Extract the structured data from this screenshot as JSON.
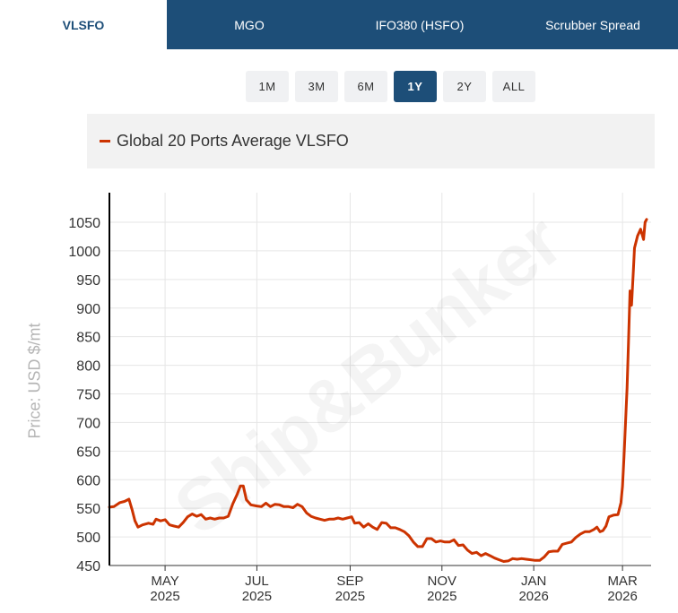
{
  "tabs": [
    {
      "label": "VLSFO",
      "active": true
    },
    {
      "label": "MGO",
      "active": false
    },
    {
      "label": "IFO380 (HSFO)",
      "active": false
    },
    {
      "label": "Scrubber Spread",
      "active": false
    }
  ],
  "ranges": [
    {
      "label": "1M",
      "active": false
    },
    {
      "label": "3M",
      "active": false
    },
    {
      "label": "6M",
      "active": false
    },
    {
      "label": "1Y",
      "active": true
    },
    {
      "label": "2Y",
      "active": false
    },
    {
      "label": "ALL",
      "active": false
    }
  ],
  "watermark": "Ship&Bunker",
  "colors": {
    "tab_bar": "#1d4e78",
    "series": "#cc3300"
  },
  "chart_data": {
    "type": "line",
    "ylabel": "Price: USD $/mt",
    "ylim": [
      450,
      1050
    ],
    "yticks": [
      450,
      500,
      550,
      600,
      650,
      700,
      750,
      800,
      850,
      900,
      950,
      1000,
      1050
    ],
    "xlim": [
      "2025-03-25",
      "2026-03-20"
    ],
    "xticks": [
      {
        "date": "2025-05-01",
        "month": "MAY",
        "year": "2025"
      },
      {
        "date": "2025-07-01",
        "month": "JUL",
        "year": "2025"
      },
      {
        "date": "2025-09-01",
        "month": "SEP",
        "year": "2025"
      },
      {
        "date": "2025-11-01",
        "month": "NOV",
        "year": "2025"
      },
      {
        "date": "2026-01-01",
        "month": "JAN",
        "year": "2026"
      },
      {
        "date": "2026-03-01",
        "month": "MAR",
        "year": "2026"
      }
    ],
    "grid": true,
    "legend": "top",
    "series": [
      {
        "name": "Global 20 Ports Average VLSFO",
        "points": [
          [
            "2025-03-25",
            552
          ],
          [
            "2025-03-28",
            553
          ],
          [
            "2025-04-01",
            560
          ],
          [
            "2025-04-04",
            562
          ],
          [
            "2025-04-07",
            566
          ],
          [
            "2025-04-09",
            548
          ],
          [
            "2025-04-11",
            528
          ],
          [
            "2025-04-13",
            517
          ],
          [
            "2025-04-16",
            521
          ],
          [
            "2025-04-20",
            524
          ],
          [
            "2025-04-23",
            522
          ],
          [
            "2025-04-25",
            531
          ],
          [
            "2025-04-28",
            528
          ],
          [
            "2025-05-01",
            530
          ],
          [
            "2025-05-04",
            521
          ],
          [
            "2025-05-07",
            519
          ],
          [
            "2025-05-10",
            517
          ],
          [
            "2025-05-13",
            525
          ],
          [
            "2025-05-16",
            535
          ],
          [
            "2025-05-19",
            540
          ],
          [
            "2025-05-22",
            536
          ],
          [
            "2025-05-25",
            539
          ],
          [
            "2025-05-28",
            531
          ],
          [
            "2025-05-31",
            533
          ],
          [
            "2025-06-03",
            531
          ],
          [
            "2025-06-06",
            533
          ],
          [
            "2025-06-09",
            533
          ],
          [
            "2025-06-12",
            536
          ],
          [
            "2025-06-15",
            558
          ],
          [
            "2025-06-18",
            575
          ],
          [
            "2025-06-20",
            589
          ],
          [
            "2025-06-22",
            589
          ],
          [
            "2025-06-24",
            565
          ],
          [
            "2025-06-27",
            556
          ],
          [
            "2025-07-01",
            554
          ],
          [
            "2025-07-04",
            553
          ],
          [
            "2025-07-07",
            559
          ],
          [
            "2025-07-10",
            553
          ],
          [
            "2025-07-13",
            557
          ],
          [
            "2025-07-16",
            556
          ],
          [
            "2025-07-19",
            553
          ],
          [
            "2025-07-22",
            553
          ],
          [
            "2025-07-25",
            551
          ],
          [
            "2025-07-28",
            557
          ],
          [
            "2025-07-31",
            553
          ],
          [
            "2025-08-03",
            542
          ],
          [
            "2025-08-06",
            536
          ],
          [
            "2025-08-09",
            533
          ],
          [
            "2025-08-12",
            531
          ],
          [
            "2025-08-15",
            529
          ],
          [
            "2025-08-18",
            531
          ],
          [
            "2025-08-21",
            531
          ],
          [
            "2025-08-24",
            533
          ],
          [
            "2025-08-27",
            531
          ],
          [
            "2025-08-30",
            533
          ],
          [
            "2025-09-02",
            535
          ],
          [
            "2025-09-04",
            524
          ],
          [
            "2025-09-07",
            525
          ],
          [
            "2025-09-10",
            517
          ],
          [
            "2025-09-13",
            523
          ],
          [
            "2025-09-16",
            517
          ],
          [
            "2025-09-19",
            513
          ],
          [
            "2025-09-22",
            525
          ],
          [
            "2025-09-25",
            524
          ],
          [
            "2025-09-28",
            516
          ],
          [
            "2025-10-01",
            516
          ],
          [
            "2025-10-04",
            513
          ],
          [
            "2025-10-07",
            509
          ],
          [
            "2025-10-10",
            502
          ],
          [
            "2025-10-13",
            491
          ],
          [
            "2025-10-16",
            483
          ],
          [
            "2025-10-19",
            483
          ],
          [
            "2025-10-22",
            497
          ],
          [
            "2025-10-25",
            497
          ],
          [
            "2025-10-28",
            491
          ],
          [
            "2025-10-31",
            493
          ],
          [
            "2025-11-03",
            491
          ],
          [
            "2025-11-06",
            491
          ],
          [
            "2025-11-09",
            495
          ],
          [
            "2025-11-12",
            485
          ],
          [
            "2025-11-15",
            486
          ],
          [
            "2025-11-18",
            477
          ],
          [
            "2025-11-21",
            471
          ],
          [
            "2025-11-24",
            473
          ],
          [
            "2025-11-27",
            467
          ],
          [
            "2025-11-30",
            471
          ],
          [
            "2025-12-03",
            467
          ],
          [
            "2025-12-06",
            463
          ],
          [
            "2025-12-09",
            460
          ],
          [
            "2025-12-12",
            457
          ],
          [
            "2025-12-15",
            458
          ],
          [
            "2025-12-18",
            462
          ],
          [
            "2025-12-21",
            461
          ],
          [
            "2025-12-24",
            462
          ],
          [
            "2025-12-27",
            461
          ],
          [
            "2025-12-30",
            460
          ],
          [
            "2026-01-02",
            459
          ],
          [
            "2026-01-05",
            459
          ],
          [
            "2026-01-08",
            465
          ],
          [
            "2026-01-11",
            474
          ],
          [
            "2026-01-14",
            475
          ],
          [
            "2026-01-17",
            475
          ],
          [
            "2026-01-20",
            487
          ],
          [
            "2026-01-23",
            489
          ],
          [
            "2026-01-26",
            491
          ],
          [
            "2026-01-29",
            499
          ],
          [
            "2026-02-01",
            505
          ],
          [
            "2026-02-04",
            509
          ],
          [
            "2026-02-07",
            509
          ],
          [
            "2026-02-10",
            513
          ],
          [
            "2026-02-12",
            517
          ],
          [
            "2026-02-14",
            509
          ],
          [
            "2026-02-16",
            511
          ],
          [
            "2026-02-18",
            519
          ],
          [
            "2026-02-20",
            535
          ],
          [
            "2026-02-23",
            538
          ],
          [
            "2026-02-26",
            539
          ],
          [
            "2026-02-28",
            560
          ],
          [
            "2026-03-01",
            588
          ],
          [
            "2026-03-02",
            640
          ],
          [
            "2026-03-03",
            700
          ],
          [
            "2026-03-04",
            760
          ],
          [
            "2026-03-05",
            840
          ],
          [
            "2026-03-06",
            930
          ],
          [
            "2026-03-07",
            905
          ],
          [
            "2026-03-08",
            955
          ],
          [
            "2026-03-09",
            1005
          ],
          [
            "2026-03-11",
            1026
          ],
          [
            "2026-03-13",
            1038
          ],
          [
            "2026-03-15",
            1020
          ],
          [
            "2026-03-16",
            1050
          ],
          [
            "2026-03-17",
            1055
          ]
        ]
      }
    ]
  }
}
